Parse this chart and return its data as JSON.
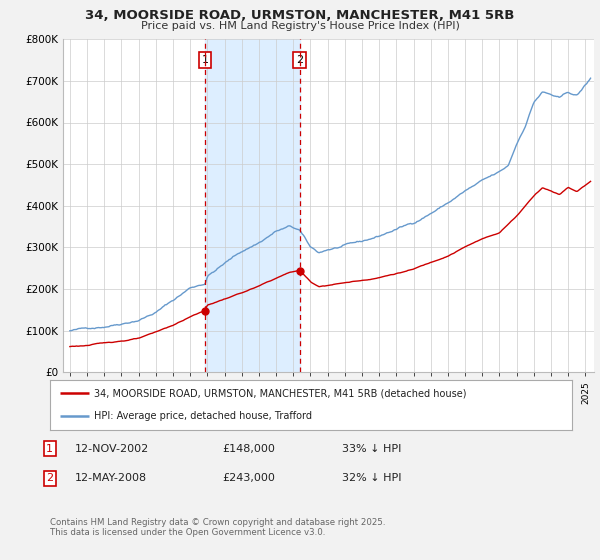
{
  "title": "34, MOORSIDE ROAD, URMSTON, MANCHESTER, M41 5RB",
  "subtitle": "Price paid vs. HM Land Registry's House Price Index (HPI)",
  "legend_label_red": "34, MOORSIDE ROAD, URMSTON, MANCHESTER, M41 5RB (detached house)",
  "legend_label_blue": "HPI: Average price, detached house, Trafford",
  "sale1_date": "12-NOV-2002",
  "sale1_price": "£148,000",
  "sale1_hpi": "33% ↓ HPI",
  "sale2_date": "12-MAY-2008",
  "sale2_price": "£243,000",
  "sale2_hpi": "32% ↓ HPI",
  "footnote": "Contains HM Land Registry data © Crown copyright and database right 2025.\nThis data is licensed under the Open Government Licence v3.0.",
  "red_color": "#cc0000",
  "blue_color": "#6699cc",
  "background_color": "#f2f2f2",
  "plot_bg_color": "#ffffff",
  "vline1_x": 2002.87,
  "vline2_x": 2008.37,
  "shade_color": "#ddeeff",
  "ylim": [
    0,
    800000
  ],
  "xlim": [
    1994.6,
    2025.5
  ],
  "sale1_year": 2002.87,
  "sale1_value": 148000,
  "sale2_year": 2008.37,
  "sale2_value": 243000
}
